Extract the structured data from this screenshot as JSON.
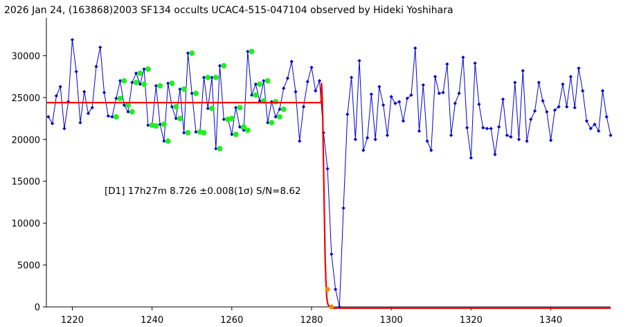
{
  "chart_data": {
    "type": "line",
    "title": "2026 Jan 24, (163868)2003 SF134 occults UCAC4-515-047104 observed by Hideki Yoshihara",
    "annotation": "[D1] 17h27m 8.726 ±0.008(1σ) S/N=8.62",
    "xlabel": "",
    "ylabel": "",
    "xlim": [
      1213.5,
      1355
    ],
    "ylim": [
      0,
      34500
    ],
    "x_ticks": [
      1220,
      1240,
      1260,
      1280,
      1300,
      1320,
      1340
    ],
    "y_ticks": [
      0,
      5000,
      10000,
      15000,
      20000,
      25000,
      30000
    ],
    "x_tick_labels": [
      "1220",
      "1240",
      "1260",
      "1280",
      "1300",
      "1320",
      "1340"
    ],
    "y_tick_labels": [
      "0",
      "5000",
      "10000",
      "15000",
      "20000",
      "25000",
      "30000"
    ],
    "grid": false,
    "colors": {
      "light_curve": "#0000cc",
      "fit_points": "#22ee22",
      "model": "#ee0000",
      "event_points": "#ff8800"
    },
    "series": [
      {
        "role": "light_curve",
        "x_start": 1214,
        "x_step": 1,
        "values": [
          22700,
          21900,
          25200,
          26300,
          21300,
          24500,
          31900,
          28100,
          22000,
          25700,
          23100,
          23800,
          28700,
          31000,
          25600,
          22800,
          22700,
          24900,
          27000,
          24100,
          23300,
          26800,
          27900,
          26600,
          28400,
          21700,
          21600,
          26400,
          21800,
          19800,
          26700,
          23900,
          22500,
          26000,
          20800,
          30300,
          25500,
          20900,
          20800,
          27400,
          23700,
          27400,
          18900,
          28800,
          22400,
          22500,
          20600,
          23800,
          21500,
          21100,
          30500,
          25300,
          26600,
          24600,
          27000,
          22000,
          24500,
          22700,
          23600,
          26100,
          27300,
          29300,
          25700,
          19800,
          23900,
          26900,
          28600,
          25800,
          27000,
          20800,
          16500,
          6300,
          2100,
          0,
          11800,
          23000,
          27400,
          20000,
          29400,
          18700,
          20200,
          25400,
          20000,
          26300,
          24100,
          20500,
          25100,
          24300,
          24500,
          22200,
          24900,
          25300,
          30900,
          21000,
          26500,
          19800,
          18700,
          27500,
          25500,
          25600,
          29000,
          20500,
          24300,
          25500,
          29800,
          21400,
          17800,
          29100,
          24200,
          21400,
          21300,
          21300,
          18200,
          21500,
          24800,
          20500,
          20300,
          26800,
          20000,
          28200,
          19800,
          22400,
          23400,
          26800,
          24600,
          23300,
          19900,
          23500,
          23900,
          26600,
          23900,
          27500,
          23800,
          28500,
          25800,
          22200,
          21300,
          21800,
          21000,
          25800,
          22700,
          20500
        ]
      },
      {
        "role": "fit_points",
        "x": [
          1231,
          1232,
          1233,
          1234,
          1235,
          1236,
          1237,
          1238,
          1239,
          1240,
          1241,
          1242,
          1243,
          1244,
          1245,
          1246,
          1247,
          1248,
          1249,
          1250,
          1251,
          1252,
          1253,
          1254,
          1255,
          1256,
          1257,
          1258,
          1259,
          1260,
          1261,
          1262,
          1263,
          1264,
          1265,
          1266,
          1267,
          1268,
          1269,
          1270,
          1271,
          1272,
          1273
        ],
        "values": [
          22700,
          24900,
          27000,
          24100,
          23300,
          26800,
          27900,
          26600,
          28400,
          21700,
          21600,
          26400,
          21800,
          19800,
          26700,
          23900,
          22500,
          26000,
          20800,
          30300,
          25500,
          20900,
          20800,
          27400,
          23700,
          27400,
          18900,
          28800,
          22400,
          22500,
          20600,
          23800,
          21500,
          21100,
          30500,
          25300,
          26600,
          24600,
          27000,
          22000,
          24500,
          22700,
          23600
        ]
      },
      {
        "role": "event_points",
        "x": [
          1284,
          1285
        ],
        "values": [
          2100,
          0
        ]
      },
      {
        "role": "model",
        "x": [
          1213.5,
          1282.4,
          1282.5,
          1282.6,
          1282.8,
          1283.0,
          1283.2,
          1283.4,
          1283.6,
          1283.8,
          1284.0,
          1284.2,
          1284.5,
          1285.0,
          1285.5,
          1286,
          1355
        ],
        "values": [
          24400,
          24400,
          26700,
          26000,
          23000,
          17000,
          11000,
          6000,
          3000,
          1200,
          500,
          200,
          50,
          -50,
          -180,
          -150,
          -150
        ]
      }
    ]
  }
}
